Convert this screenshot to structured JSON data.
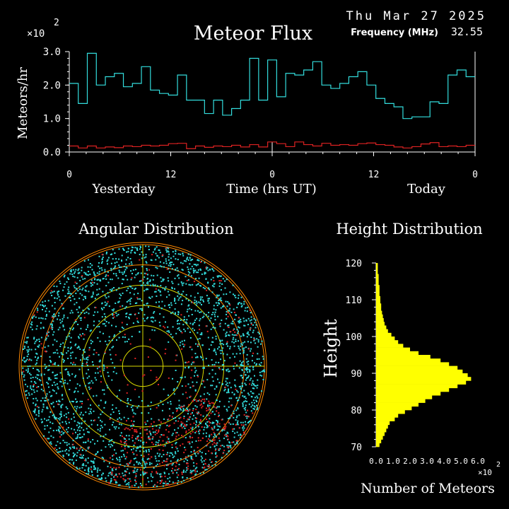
{
  "header": {
    "date": "Thu Mar 27 2025",
    "title": "Meteor Flux",
    "frequency_label": "Frequency (MHz)",
    "frequency_value": "32.55"
  },
  "colors": {
    "background": "#000000",
    "flux_line": "#33dddd",
    "low_line": "#dd2222",
    "axis": "#ffffff",
    "polar_ring_outer": "#ff8800",
    "polar_ring_inner": "#d8d800",
    "height_bar": "#ffff00",
    "scatter_a": "#33dddd",
    "scatter_b": "#dd2222"
  },
  "chart_data": [
    {
      "type": "line",
      "title": "Meteor Flux",
      "ylabel": "Meteors/hr",
      "y_multiplier": "×10",
      "y_multiplier_exp": "2",
      "xlabel": "Time (hrs UT)",
      "x_section_labels": [
        "Yesterday",
        "Today"
      ],
      "x_ticks": [
        "0",
        "12",
        "0",
        "12",
        "0"
      ],
      "y_ticks": [
        "0.0",
        "1.0",
        "2.0",
        "3.0"
      ],
      "ylim": [
        0,
        3.0
      ],
      "xlim": [
        0,
        48
      ],
      "series": [
        {
          "color": "#33dddd",
          "values": [
            2.05,
            1.45,
            2.95,
            2.0,
            2.25,
            2.35,
            1.95,
            2.05,
            2.55,
            1.85,
            1.75,
            1.7,
            2.3,
            1.55,
            1.55,
            1.15,
            1.55,
            1.1,
            1.3,
            1.55,
            2.8,
            1.55,
            2.75,
            1.65,
            2.35,
            2.3,
            2.45,
            2.7,
            2.0,
            1.9,
            2.05,
            2.25,
            2.4,
            2.0,
            1.6,
            1.45,
            1.35,
            1.0,
            1.05,
            1.05,
            1.5,
            1.45,
            2.3,
            2.45,
            2.25
          ]
        },
        {
          "color": "#dd2222",
          "values": [
            0.18,
            0.12,
            0.18,
            0.12,
            0.15,
            0.13,
            0.18,
            0.16,
            0.2,
            0.18,
            0.2,
            0.25,
            0.26,
            0.1,
            0.18,
            0.14,
            0.18,
            0.16,
            0.2,
            0.15,
            0.22,
            0.15,
            0.3,
            0.25,
            0.16,
            0.3,
            0.22,
            0.18,
            0.26,
            0.2,
            0.22,
            0.2,
            0.25,
            0.27,
            0.22,
            0.2,
            0.15,
            0.12,
            0.16,
            0.24,
            0.28,
            0.16,
            0.18,
            0.16,
            0.2
          ]
        }
      ]
    },
    {
      "type": "scatter",
      "title": "Angular Distribution",
      "rings": 6
    },
    {
      "type": "bar",
      "title": "Height Distribution",
      "ylabel": "Height",
      "xlabel": "Number of Meteors",
      "x_multiplier": "×10",
      "x_multiplier_exp": "2",
      "x_ticks": [
        "0.0",
        "1.0",
        "2.0",
        "3.0",
        "4.0",
        "5.0",
        "6.0"
      ],
      "y_ticks": [
        "70",
        "80",
        "90",
        "100",
        "110",
        "120"
      ],
      "ylim": [
        70,
        120
      ],
      "xlim": [
        0,
        6.0
      ],
      "bin_heights": [
        70,
        71,
        72,
        73,
        74,
        75,
        76,
        77,
        78,
        79,
        80,
        81,
        82,
        83,
        84,
        85,
        86,
        87,
        88,
        89,
        90,
        91,
        92,
        93,
        94,
        95,
        96,
        97,
        98,
        99,
        100,
        101,
        102,
        103,
        104,
        105,
        106,
        107,
        108,
        109,
        110,
        111,
        112,
        113,
        114,
        115,
        116,
        117,
        118,
        119
      ],
      "values": [
        0.2,
        0.3,
        0.4,
        0.5,
        0.6,
        0.7,
        0.8,
        1.1,
        1.3,
        1.7,
        2.1,
        2.5,
        2.9,
        3.3,
        3.8,
        4.3,
        4.8,
        5.3,
        5.6,
        5.4,
        5.1,
        4.8,
        4.3,
        3.8,
        3.2,
        2.5,
        2.0,
        1.6,
        1.3,
        1.1,
        0.9,
        0.7,
        0.6,
        0.5,
        0.45,
        0.4,
        0.35,
        0.3,
        0.3,
        0.25,
        0.25,
        0.2,
        0.2,
        0.2,
        0.15,
        0.15,
        0.15,
        0.1,
        0.1,
        0.1
      ]
    }
  ]
}
